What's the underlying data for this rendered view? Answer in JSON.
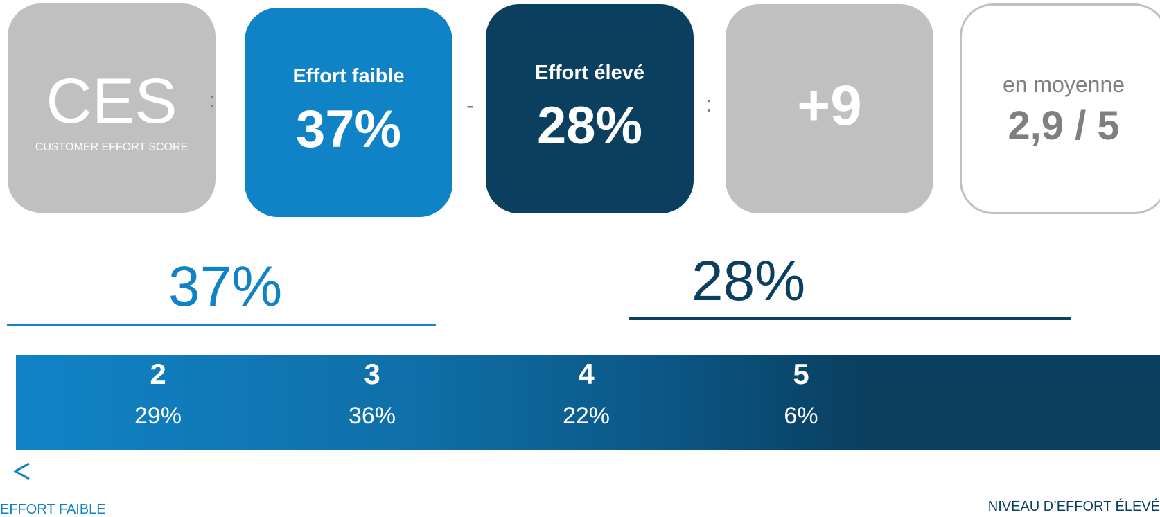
{
  "score_row": {
    "ces": {
      "title": "CES",
      "subtitle": "CUSTOMER EFFORT SCORE"
    },
    "op_equals_1": ":",
    "low_effort": {
      "label": "Effort faible",
      "value": "37%"
    },
    "op_minus": "-",
    "high_effort": {
      "label": "Effort élevé",
      "value": "28%"
    },
    "op_equals_2": ":",
    "net_score": {
      "value": "+9"
    },
    "average": {
      "label": "en moyenne",
      "value": "2,9 / 5"
    }
  },
  "groups": {
    "low": {
      "value": "37%"
    },
    "high": {
      "value": "28%"
    }
  },
  "scale": {
    "levels": [
      {
        "level": "2",
        "share": "29%"
      },
      {
        "level": "3",
        "share": "36%"
      },
      {
        "level": "4",
        "share": "22%"
      },
      {
        "level": "5",
        "share": "6%"
      }
    ]
  },
  "axis": {
    "low_label": "EFFORT FAIBLE",
    "high_label": "NIVEAU D’EFFORT ÉLEVÉ"
  },
  "colors": {
    "low_effort_blue": "#1083c6",
    "high_effort_navy": "#0a3f60",
    "neutral_gray": "#c0c0c0",
    "text_gray": "#7f7f7f"
  }
}
